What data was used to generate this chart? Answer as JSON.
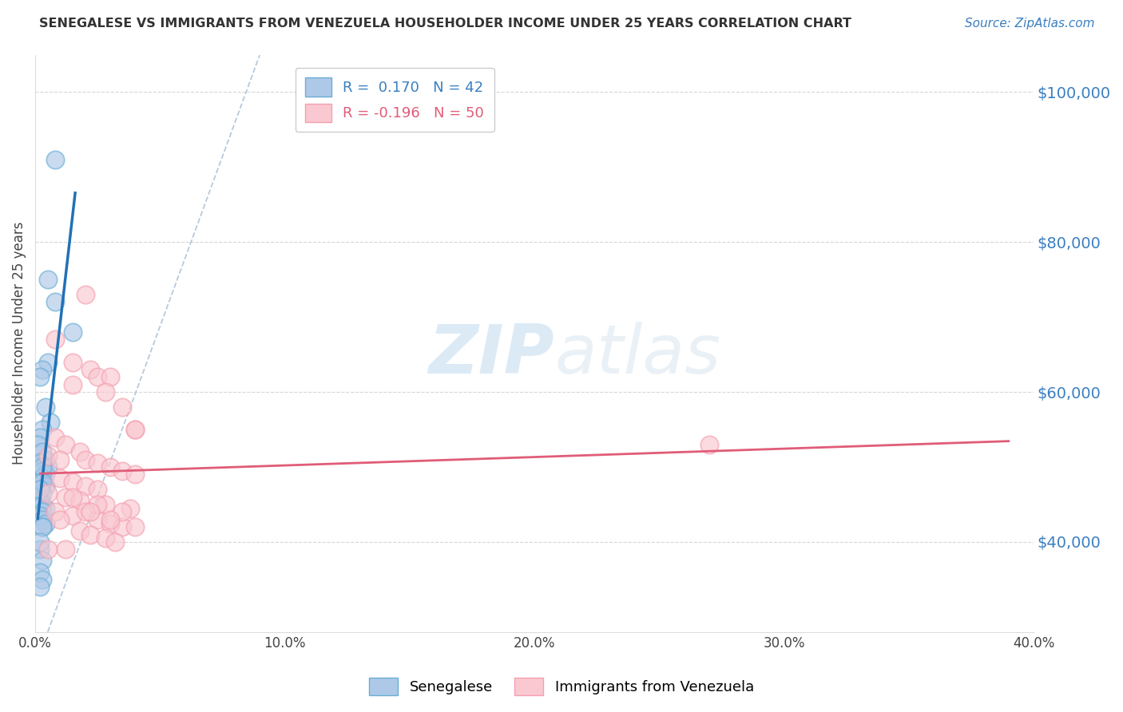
{
  "title": "SENEGALESE VS IMMIGRANTS FROM VENEZUELA HOUSEHOLDER INCOME UNDER 25 YEARS CORRELATION CHART",
  "source": "Source: ZipAtlas.com",
  "ylabel": "Householder Income Under 25 years",
  "xmin": 0.0,
  "xmax": 0.4,
  "ymin": 28000,
  "ymax": 105000,
  "yticks": [
    40000,
    60000,
    80000,
    100000
  ],
  "ytick_labels": [
    "$40,000",
    "$60,000",
    "$80,000",
    "$100,000"
  ],
  "watermark_zip": "ZIP",
  "watermark_atlas": "atlas",
  "legend_r1": "R =  0.170",
  "legend_n1": "N = 42",
  "legend_r2": "R = -0.196",
  "legend_n2": "N = 50",
  "blue_color": "#6baed6",
  "blue_fill": "#aec9e8",
  "pink_color": "#f4a0b0",
  "pink_fill": "#f9c8d0",
  "blue_line_color": "#2171b5",
  "pink_line_color": "#e05c78",
  "ref_line_color": "#b0c4d8",
  "grid_color": "#cccccc",
  "background_color": "#ffffff",
  "blue_x": [
    0.008,
    0.005,
    0.008,
    0.015,
    0.005,
    0.003,
    0.002,
    0.004,
    0.006,
    0.003,
    0.002,
    0.001,
    0.003,
    0.004,
    0.002,
    0.005,
    0.003,
    0.004,
    0.003,
    0.002,
    0.004,
    0.002,
    0.003,
    0.001,
    0.002,
    0.003,
    0.004,
    0.003,
    0.002,
    0.003,
    0.004,
    0.003,
    0.003,
    0.003,
    0.002,
    0.002,
    0.003,
    0.002,
    0.003,
    0.002,
    0.003,
    0.002
  ],
  "blue_y": [
    91000,
    75000,
    72000,
    68000,
    64000,
    63000,
    62000,
    58000,
    56000,
    55000,
    54000,
    53000,
    52000,
    51000,
    50500,
    50000,
    49500,
    49000,
    48500,
    48000,
    47500,
    47000,
    46500,
    46000,
    45500,
    45000,
    44500,
    44000,
    43500,
    43000,
    42500,
    42000,
    50000,
    48000,
    47000,
    39000,
    37500,
    36000,
    35000,
    34000,
    42000,
    40000
  ],
  "pink_x": [
    0.02,
    0.008,
    0.015,
    0.022,
    0.025,
    0.03,
    0.015,
    0.028,
    0.035,
    0.04,
    0.008,
    0.012,
    0.018,
    0.005,
    0.01,
    0.02,
    0.025,
    0.03,
    0.035,
    0.04,
    0.01,
    0.015,
    0.02,
    0.025,
    0.005,
    0.012,
    0.018,
    0.028,
    0.038,
    0.008,
    0.015,
    0.025,
    0.03,
    0.035,
    0.018,
    0.022,
    0.028,
    0.032,
    0.04,
    0.005,
    0.015,
    0.025,
    0.035,
    0.01,
    0.02,
    0.03,
    0.04,
    0.012,
    0.022,
    0.27
  ],
  "pink_y": [
    73000,
    67000,
    64000,
    63000,
    62000,
    62000,
    61000,
    60000,
    58000,
    55000,
    54000,
    53000,
    52000,
    51500,
    51000,
    51000,
    50500,
    50000,
    49500,
    49000,
    48500,
    48000,
    47500,
    47000,
    46500,
    46000,
    45500,
    45000,
    44500,
    44000,
    43500,
    43000,
    42500,
    42000,
    41500,
    41000,
    40500,
    40000,
    55000,
    39000,
    46000,
    45000,
    44000,
    43000,
    44000,
    43000,
    42000,
    39000,
    44000,
    53000
  ],
  "xticks": [
    0.0,
    0.1,
    0.2,
    0.3,
    0.4
  ],
  "xtick_labels": [
    "0.0%",
    "10.0%",
    "20.0%",
    "30.0%",
    "40.0%"
  ]
}
